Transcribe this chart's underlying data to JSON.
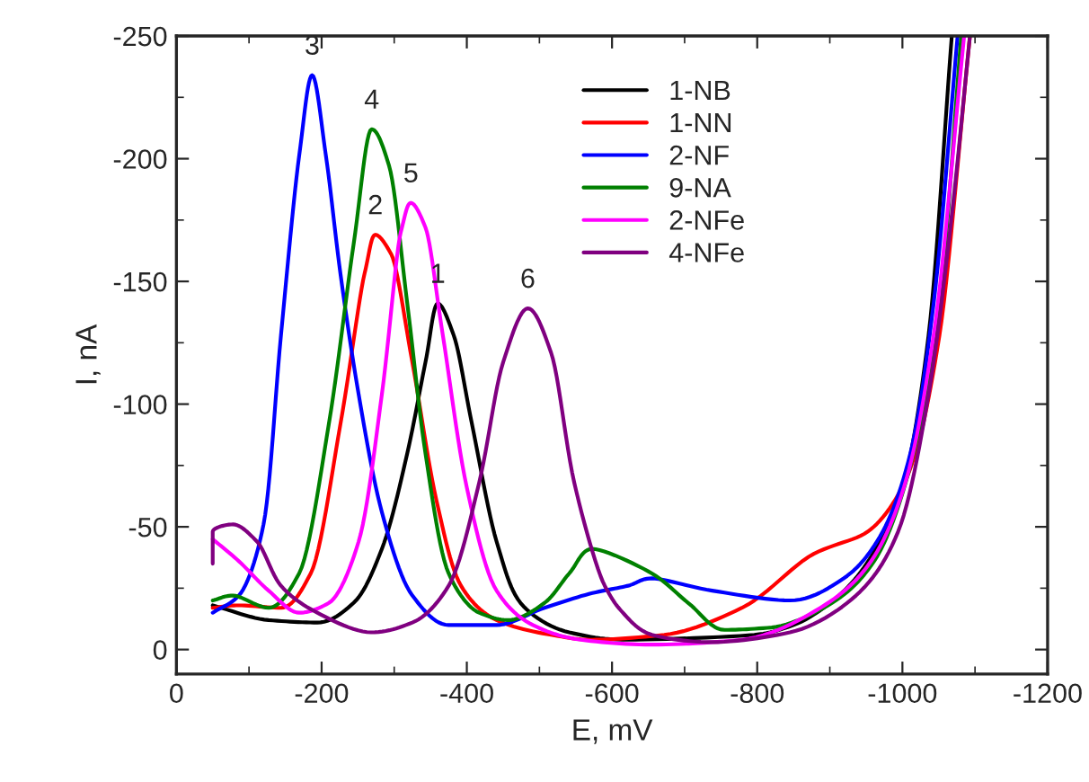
{
  "chart_data": {
    "type": "line",
    "xlabel": "E, mV",
    "ylabel": "I, nA",
    "xlim": [
      0,
      -1200
    ],
    "xticks": [
      0,
      -200,
      -400,
      -600,
      -800,
      -1000,
      -1200
    ],
    "ylim": [
      10,
      -250
    ],
    "yticks": [
      0,
      -50,
      -100,
      -150,
      -200,
      -250
    ],
    "grid": false,
    "legend": "top",
    "line_style": "solid",
    "marker": "none",
    "series": [
      {
        "name": "1-NB",
        "color": "#000000",
        "x": [
          -50,
          -127,
          -194,
          -244,
          -283,
          -318,
          -343,
          -360,
          -382,
          -407,
          -441,
          -474,
          -541,
          -622,
          -796,
          -850,
          -920,
          -969,
          -1002,
          -1036,
          -1068
        ],
        "values": [
          -18,
          -12,
          -11,
          -19,
          -41,
          -80,
          -117,
          -141,
          -128,
          -92,
          -44,
          -19,
          -7,
          -4,
          -6,
          -10,
          -24,
          -44,
          -68,
          -128,
          -250
        ]
      },
      {
        "name": "1-NN",
        "color": "#ff0000",
        "x": [
          -50,
          -86,
          -144,
          -185,
          -226,
          -259,
          -274,
          -296,
          -325,
          -358,
          -392,
          -441,
          -516,
          -573,
          -672,
          -779,
          -878,
          -952,
          -994,
          -1018,
          -1051,
          -1093
        ],
        "values": [
          -17,
          -18,
          -17,
          -31,
          -92,
          -153,
          -169,
          -161,
          -117,
          -61,
          -26,
          -12,
          -6,
          -4,
          -6,
          -17,
          -39,
          -48,
          -63,
          -80,
          -128,
          -250
        ]
      },
      {
        "name": "2-NF",
        "color": "#0000ff",
        "x": [
          -50,
          -86,
          -120,
          -144,
          -169,
          -187,
          -206,
          -226,
          -251,
          -283,
          -325,
          -375,
          -441,
          -507,
          -573,
          -622,
          -655,
          -738,
          -845,
          -919,
          -969,
          -1011,
          -1043,
          -1076
        ],
        "values": [
          -15,
          -22,
          -51,
          -128,
          -201,
          -234,
          -201,
          -153,
          -104,
          -56,
          -22,
          -10,
          -10,
          -17,
          -23,
          -26,
          -29,
          -24,
          -20,
          -29,
          -46,
          -80,
          -141,
          -250
        ]
      },
      {
        "name": "9-NA",
        "color": "#008000",
        "x": [
          -50,
          -78,
          -127,
          -169,
          -210,
          -244,
          -269,
          -293,
          -318,
          -343,
          -375,
          -417,
          -458,
          -507,
          -541,
          -573,
          -655,
          -705,
          -755,
          -820,
          -903,
          -961,
          -1011,
          -1051,
          -1081
        ],
        "values": [
          -20,
          -22,
          -17,
          -31,
          -92,
          -165,
          -212,
          -197,
          -141,
          -80,
          -31,
          -15,
          -12,
          -19,
          -31,
          -41,
          -31,
          -19,
          -8,
          -9,
          -19,
          -36,
          -75,
          -141,
          -250
        ]
      },
      {
        "name": "2-NFe",
        "color": "#ff00ff",
        "x": [
          -50,
          -86,
          -127,
          -169,
          -210,
          -251,
          -283,
          -309,
          -323,
          -343,
          -367,
          -400,
          -441,
          -491,
          -557,
          -655,
          -779,
          -887,
          -952,
          -1002,
          -1043,
          -1085
        ],
        "values": [
          -45,
          -36,
          -24,
          -15,
          -19,
          -44,
          -104,
          -170,
          -182,
          -172,
          -128,
          -66,
          -24,
          -10,
          -4,
          -2,
          -4,
          -17,
          -34,
          -66,
          -128,
          -250
        ]
      },
      {
        "name": "4-NFe",
        "color": "#800080",
        "x": [
          -50,
          -50,
          -78,
          -111,
          -144,
          -194,
          -268,
          -325,
          -375,
          -417,
          -450,
          -484,
          -516,
          -548,
          -590,
          -615,
          -655,
          -738,
          -845,
          -936,
          -994,
          -1036,
          -1068,
          -1093
        ],
        "values": [
          -35,
          -48,
          -51,
          -44,
          -26,
          -15,
          -7,
          -11,
          -26,
          -68,
          -117,
          -139,
          -121,
          -68,
          -26,
          -15,
          -6,
          -3,
          -7,
          -22,
          -48,
          -104,
          -177,
          -250
        ]
      }
    ],
    "annotations": [
      {
        "text": "3",
        "x": -187,
        "y": -234
      },
      {
        "text": "4",
        "x": -269,
        "y": -212
      },
      {
        "text": "5",
        "x": -323,
        "y": -182
      },
      {
        "text": "2",
        "x": -274,
        "y": -169
      },
      {
        "text": "1",
        "x": -360,
        "y": -141
      },
      {
        "text": "6",
        "x": -484,
        "y": -139
      }
    ]
  }
}
